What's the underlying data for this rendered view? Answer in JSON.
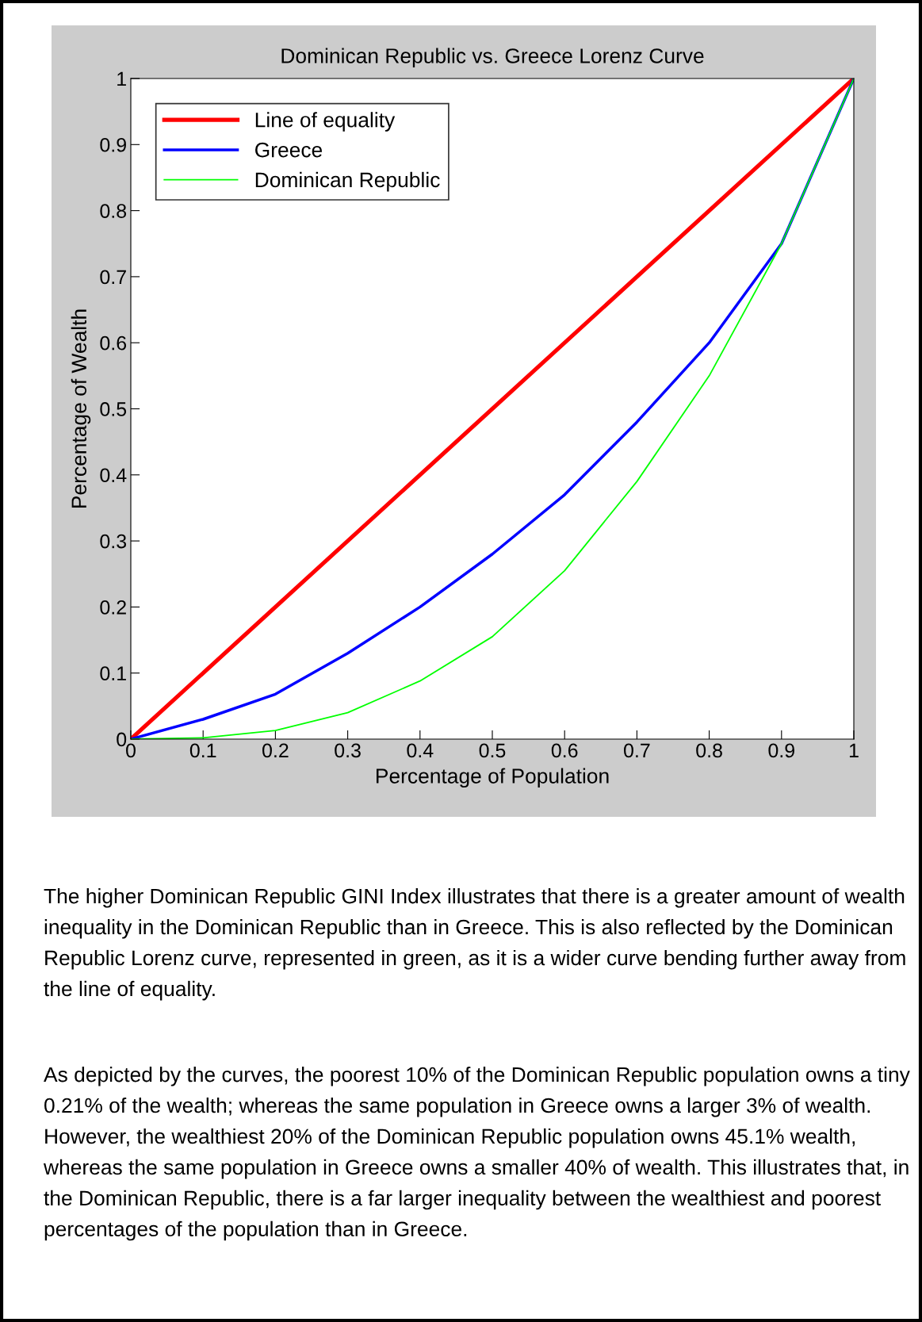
{
  "chart_data": {
    "type": "line",
    "title": "Dominican Republic vs. Greece Lorenz Curve",
    "xlabel": "Percentage of Population",
    "ylabel": "Percentage of Wealth",
    "series": [
      {
        "name": "Line of equality",
        "color": "#ff0000",
        "x": [
          0,
          1
        ],
        "values": [
          0,
          1
        ]
      },
      {
        "name": "Greece",
        "color": "#0000ff",
        "x": [
          0,
          0.1,
          0.2,
          0.3,
          0.4,
          0.5,
          0.6,
          0.7,
          0.8,
          0.9,
          1
        ],
        "values": [
          0,
          0.03,
          0.068,
          0.13,
          0.2,
          0.28,
          0.37,
          0.48,
          0.6,
          0.75,
          1
        ]
      },
      {
        "name": "Dominican Republic",
        "color": "#00ff00",
        "x": [
          0,
          0.1,
          0.2,
          0.3,
          0.4,
          0.5,
          0.6,
          0.7,
          0.8,
          0.9,
          1
        ],
        "values": [
          0,
          0.002,
          0.013,
          0.04,
          0.088,
          0.155,
          0.255,
          0.39,
          0.55,
          0.75,
          1
        ]
      }
    ],
    "xlim": [
      0,
      1
    ],
    "ylim": [
      0,
      1
    ],
    "xticks": [
      0,
      0.1,
      0.2,
      0.3,
      0.4,
      0.5,
      0.6,
      0.7,
      0.8,
      0.9,
      1
    ],
    "yticks": [
      0,
      0.1,
      0.2,
      0.3,
      0.4,
      0.5,
      0.6,
      0.7,
      0.8,
      0.9,
      1
    ],
    "grid": false,
    "legend": "top left",
    "marker": "none",
    "line_style": "solid",
    "annotations": [
      "The higher Dominican Republic GINI Index illustrates that there is a greater amount of wealth inequality in the Dominican Republic than in Greece. This is also reflected by the Dominican Republic Lorenz curve, represented in green, as it is a wider curve bending further away from the line of equality.",
      "As depicted by the curves, the poorest 10% of the Dominican Republic population owns a tiny 0.21% of the wealth; whereas the same population in Greece owns a larger 3% of wealth. However, the wealthiest 20% of the Dominican Republic population owns 45.1% wealth, whereas the same population in Greece owns a smaller 40% of wealth. This illustrates that, in the Dominican Republic, there is a far larger inequality between the wealthiest and poorest percentages of the population than in Greece."
    ]
  }
}
